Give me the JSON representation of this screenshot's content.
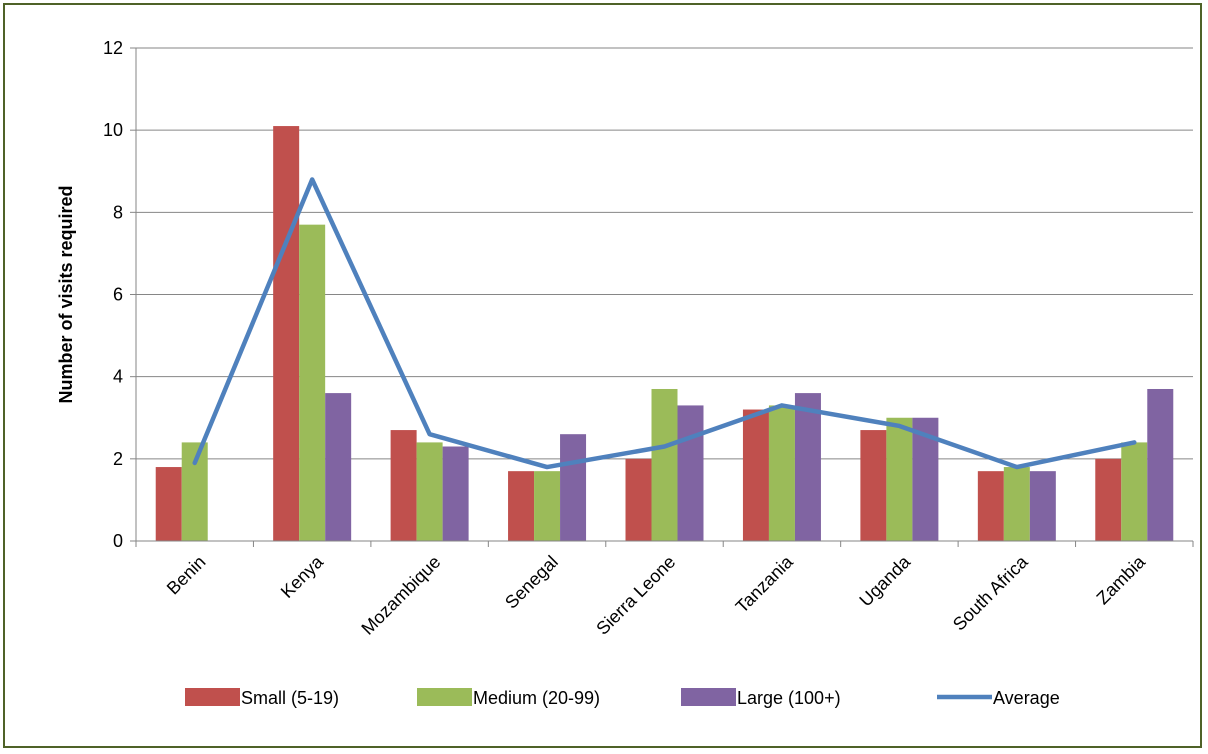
{
  "chart_data": {
    "type": "bar",
    "categories": [
      "Benin",
      "Kenya",
      "Mozambique",
      "Senegal",
      "Sierra Leone",
      "Tanzania",
      "Uganda",
      "South Africa",
      "Zambia"
    ],
    "series": [
      {
        "name": "Small (5-19)",
        "type": "bar",
        "color": "#c0504d",
        "values": [
          1.8,
          10.1,
          2.7,
          1.7,
          2.0,
          3.2,
          2.7,
          1.7,
          2.0
        ]
      },
      {
        "name": "Medium (20-99)",
        "type": "bar",
        "color": "#9bbb59",
        "values": [
          2.4,
          7.7,
          2.4,
          1.7,
          3.7,
          3.3,
          3.0,
          1.8,
          2.4
        ]
      },
      {
        "name": "Large (100+)",
        "type": "bar",
        "color": "#8064a2",
        "values": [
          null,
          3.6,
          2.3,
          2.6,
          3.3,
          3.6,
          3.0,
          1.7,
          3.7
        ]
      },
      {
        "name": "Average",
        "type": "line",
        "color": "#4f81bd",
        "values": [
          1.9,
          8.8,
          2.6,
          1.8,
          2.3,
          3.3,
          2.8,
          1.8,
          2.4
        ]
      }
    ],
    "title": "",
    "xlabel": "",
    "ylabel": "Number of visits required",
    "ylim": [
      0,
      12
    ],
    "yticks": [
      0,
      2,
      4,
      6,
      8,
      10,
      12
    ],
    "grid": true,
    "legend": "bottom"
  }
}
